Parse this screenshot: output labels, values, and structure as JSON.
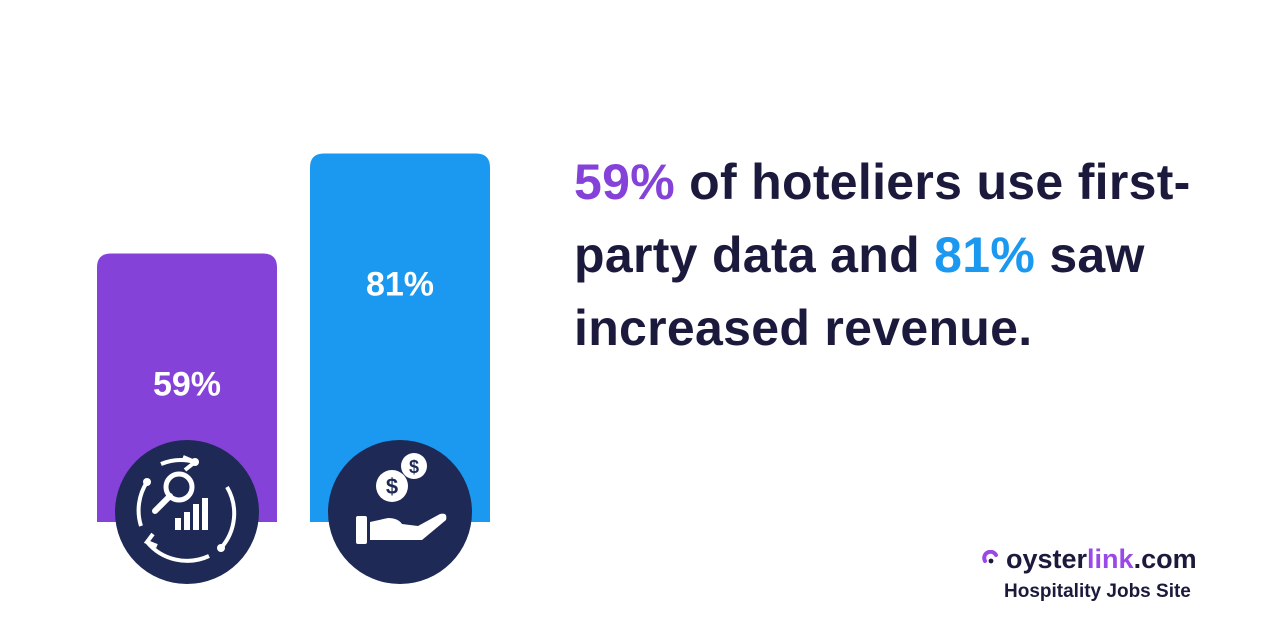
{
  "chart_data": {
    "type": "bar",
    "categories": [
      "use first-party data",
      "saw increased revenue"
    ],
    "values": [
      59,
      81
    ],
    "value_labels": [
      "59%",
      "81%"
    ],
    "ylim": [
      0,
      100
    ],
    "colors": [
      "#8542d9",
      "#1b98f0"
    ],
    "icons": [
      "analytics-search-chart-icon",
      "hand-coins-icon"
    ],
    "grid": false
  },
  "headline": {
    "stat1": "59%",
    "text1": " of hoteliers use first-party data and ",
    "stat2": "81%",
    "text2": " saw increased revenue."
  },
  "brand": {
    "name_part1": "oyster",
    "name_part2": "link",
    "name_part3": ".com",
    "tagline": "Hospitality Jobs Site",
    "logo_icon": "oyster-logo-icon"
  },
  "colors": {
    "text": "#1b1a3d",
    "purple": "#8542d9",
    "blue": "#1b98f0",
    "icon_circle": "#1e2a55"
  }
}
